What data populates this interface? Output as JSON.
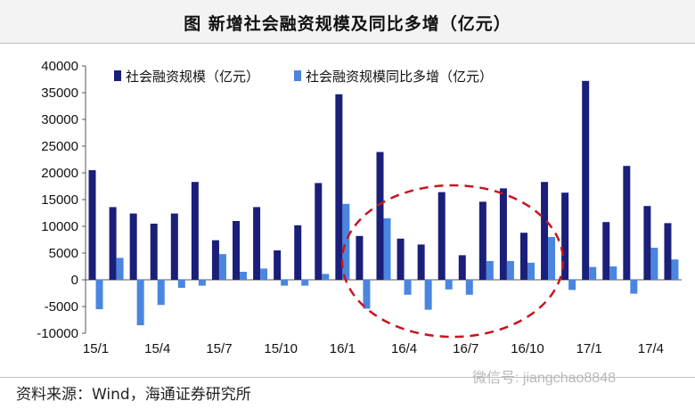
{
  "title": "图 新增社会融资规模及同比多增（亿元）",
  "source": "资料来源：Wind，海通证券研究所",
  "watermark": "微信号: jiangchao8848",
  "colors": {
    "series1": "#1a1f7a",
    "series2": "#4a86e0",
    "circle": "#c8141e"
  },
  "chart_data": {
    "type": "bar",
    "categories": [
      "15/1",
      "15/2",
      "15/3",
      "15/4",
      "15/5",
      "15/6",
      "15/7",
      "15/8",
      "15/9",
      "15/10",
      "15/11",
      "15/12",
      "16/1",
      "16/2",
      "16/3",
      "16/4",
      "16/5",
      "16/6",
      "16/7",
      "16/8",
      "16/9",
      "16/10",
      "16/11",
      "16/12",
      "17/1",
      "17/2",
      "17/3",
      "17/4",
      "17/5"
    ],
    "xtick_labels": [
      "15/1",
      "15/4",
      "15/7",
      "15/10",
      "16/1",
      "16/4",
      "16/7",
      "16/10",
      "17/1",
      "17/4"
    ],
    "series": [
      {
        "name": "社会融资规模（亿元）",
        "values": [
          20500,
          13600,
          12400,
          10500,
          12400,
          18300,
          7400,
          11000,
          13600,
          5500,
          10200,
          18100,
          34700,
          8200,
          23900,
          7700,
          6600,
          16400,
          4600,
          14600,
          17100,
          8800,
          18300,
          16300,
          37200,
          10800,
          21300,
          13800,
          10600
        ]
      },
      {
        "name": "社会融资规模同比多增（亿元）",
        "values": [
          -5500,
          4100,
          -8500,
          -4700,
          -1500,
          -1100,
          4800,
          1500,
          2100,
          -1100,
          -1100,
          1100,
          14200,
          -5400,
          11500,
          -2800,
          -5600,
          -1800,
          -2800,
          3500,
          3500,
          3200,
          8000,
          -1900,
          2400,
          2500,
          -2600,
          6000,
          3800
        ]
      }
    ],
    "ylim": [
      -10000,
      40000
    ],
    "yticks": [
      -10000,
      -5000,
      0,
      5000,
      10000,
      15000,
      20000,
      25000,
      30000,
      35000,
      40000
    ],
    "legend_position": "top",
    "grid": false,
    "annotation": "dashed-ellipse highlighting 16/1 to 16/11"
  }
}
